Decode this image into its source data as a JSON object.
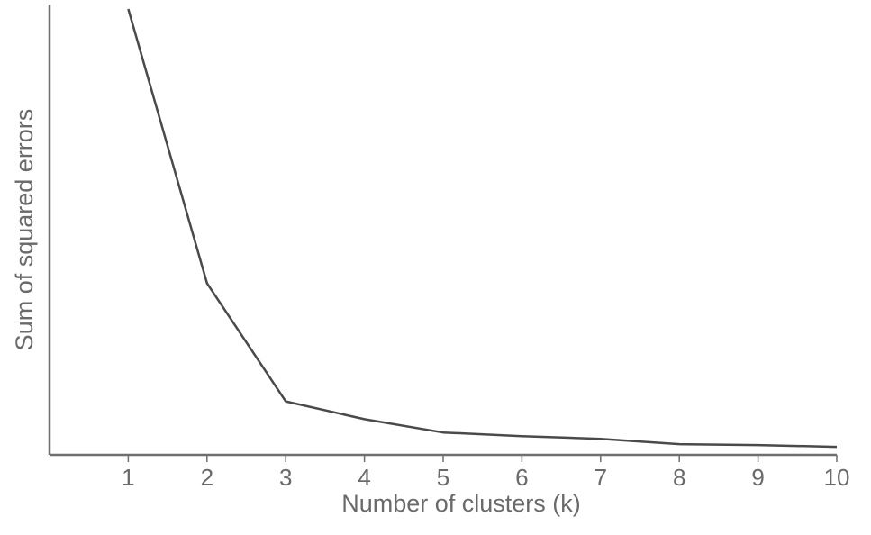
{
  "chart_data": {
    "type": "line",
    "title": "",
    "xlabel": "Number of clusters (k)",
    "ylabel": "Sum of squared errors",
    "x": [
      1,
      2,
      3,
      4,
      5,
      6,
      7,
      8,
      9,
      10
    ],
    "x_tick_labels": [
      "1",
      "2",
      "3",
      "4",
      "5",
      "6",
      "7",
      "8",
      "9",
      "10"
    ],
    "series": [
      {
        "values": [
          100,
          38.5,
          12,
          8,
          5,
          4.2,
          3.6,
          2.4,
          2.2,
          1.8
        ]
      }
    ],
    "xlim": [
      0,
      10
    ],
    "ylim": [
      0,
      101
    ],
    "y_tick_labels": [],
    "grid": false,
    "legend": "none",
    "line_color": "#4a4a4a",
    "axis_color": "#6f6f6f"
  }
}
